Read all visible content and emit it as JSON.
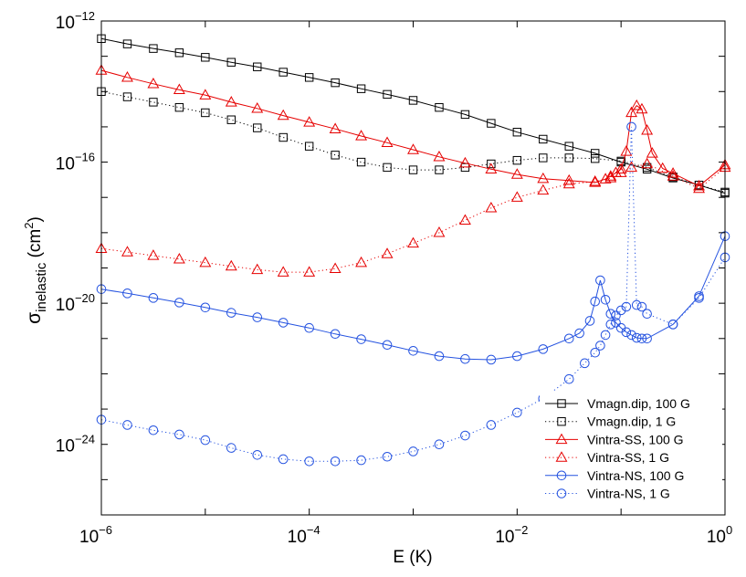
{
  "chart_data": {
    "type": "line",
    "x_scale": "log",
    "y_scale": "log",
    "xlabel": "E (K)",
    "ylabel_main": "σ",
    "ylabel_sub": "inelastic",
    "ylabel_unit_open": " (cm",
    "ylabel_unit_sup": "2",
    "ylabel_unit_close": ")",
    "xlim_exp": [
      -6,
      0
    ],
    "ylim_exp": [
      -26,
      -12
    ],
    "x_ticks": [
      {
        "base": "10",
        "exp": "−6",
        "value": -6
      },
      {
        "base": "10",
        "exp": "−4",
        "value": -4
      },
      {
        "base": "10",
        "exp": "−2",
        "value": -2
      },
      {
        "base": "10",
        "exp": "0",
        "value": 0
      }
    ],
    "y_ticks": [
      {
        "base": "10",
        "exp": "−12",
        "value": -12
      },
      {
        "base": "10",
        "exp": "−16",
        "value": -16
      },
      {
        "base": "10",
        "exp": "−20",
        "value": -20
      },
      {
        "base": "10",
        "exp": "−24",
        "value": -24
      }
    ],
    "legend_position": "bottom-right",
    "series": [
      {
        "name": "Vmagn.dip, 100 G",
        "color": "#000000",
        "marker": "square",
        "line": "solid",
        "log_x": [
          -6.0,
          -5.75,
          -5.5,
          -5.25,
          -5.0,
          -4.75,
          -4.5,
          -4.25,
          -4.0,
          -3.75,
          -3.5,
          -3.25,
          -3.0,
          -2.75,
          -2.5,
          -2.25,
          -2.0,
          -1.75,
          -1.5,
          -1.25,
          -1.0,
          -0.75,
          -0.5,
          -0.25,
          0.0
        ],
        "log_y": [
          -12.5,
          -12.65,
          -12.78,
          -12.9,
          -13.03,
          -13.17,
          -13.3,
          -13.45,
          -13.6,
          -13.75,
          -13.92,
          -14.08,
          -14.25,
          -14.45,
          -14.65,
          -14.9,
          -15.15,
          -15.35,
          -15.55,
          -15.75,
          -16.0,
          -16.2,
          -16.45,
          -16.65,
          -16.88
        ]
      },
      {
        "name": "Vmagn.dip, 1 G",
        "color": "#000000",
        "marker": "square",
        "line": "dotted",
        "log_x": [
          -6.0,
          -5.75,
          -5.5,
          -5.25,
          -5.0,
          -4.75,
          -4.5,
          -4.25,
          -4.0,
          -3.75,
          -3.5,
          -3.25,
          -3.0,
          -2.75,
          -2.5,
          -2.25,
          -2.0,
          -1.75,
          -1.5,
          -1.25,
          -1.0,
          -0.75,
          -0.5,
          -0.25,
          0.0
        ],
        "log_y": [
          -14.0,
          -14.15,
          -14.3,
          -14.45,
          -14.6,
          -14.8,
          -15.03,
          -15.3,
          -15.55,
          -15.8,
          -16.0,
          -16.15,
          -16.22,
          -16.22,
          -16.15,
          -16.05,
          -15.95,
          -15.88,
          -15.88,
          -15.9,
          -15.97,
          -16.15,
          -16.42,
          -16.65,
          -16.85
        ]
      },
      {
        "name": "Vintra-SS, 100 G",
        "color": "#e60000",
        "marker": "triangle",
        "line": "solid",
        "log_x": [
          -6.0,
          -5.75,
          -5.5,
          -5.25,
          -5.0,
          -4.75,
          -4.5,
          -4.25,
          -4.0,
          -3.75,
          -3.5,
          -3.25,
          -3.0,
          -2.75,
          -2.5,
          -2.25,
          -2.0,
          -1.75,
          -1.5,
          -1.25,
          -1.15,
          -1.1,
          -1.05,
          -1.0,
          -0.95,
          -0.9,
          -0.85,
          -0.8,
          -0.75,
          -0.7,
          -0.6,
          -0.5,
          -0.25,
          0.0
        ],
        "log_y": [
          -13.4,
          -13.6,
          -13.78,
          -13.95,
          -14.1,
          -14.3,
          -14.48,
          -14.68,
          -14.87,
          -15.06,
          -15.26,
          -15.45,
          -15.65,
          -15.85,
          -16.03,
          -16.2,
          -16.35,
          -16.47,
          -16.52,
          -16.58,
          -16.48,
          -16.4,
          -16.3,
          -16.2,
          -15.7,
          -14.6,
          -14.4,
          -14.5,
          -15.1,
          -15.75,
          -16.18,
          -16.32,
          -16.68,
          -16.08
        ]
      },
      {
        "name": "Vintra-SS, 1 G",
        "color": "#e60000",
        "marker": "triangle",
        "line": "dotted",
        "log_x": [
          -6.0,
          -5.75,
          -5.5,
          -5.25,
          -5.0,
          -4.75,
          -4.5,
          -4.25,
          -4.0,
          -3.75,
          -3.5,
          -3.25,
          -3.0,
          -2.75,
          -2.5,
          -2.25,
          -2.0,
          -1.75,
          -1.5,
          -1.25,
          -1.1,
          -1.0,
          -0.9,
          -0.75,
          -0.5,
          -0.25,
          0.0
        ],
        "log_y": [
          -18.45,
          -18.55,
          -18.65,
          -18.75,
          -18.85,
          -18.95,
          -19.05,
          -19.12,
          -19.12,
          -19.02,
          -18.85,
          -18.6,
          -18.3,
          -18.0,
          -17.65,
          -17.3,
          -17.0,
          -16.8,
          -16.62,
          -16.55,
          -16.45,
          -16.3,
          -16.15,
          -16.05,
          -16.4,
          -16.75,
          -16.15
        ]
      },
      {
        "name": "Vintra-NS, 100 G",
        "color": "#2452e0",
        "marker": "circle",
        "line": "solid",
        "log_x": [
          -6.0,
          -5.75,
          -5.5,
          -5.25,
          -5.0,
          -4.75,
          -4.5,
          -4.25,
          -4.0,
          -3.75,
          -3.5,
          -3.25,
          -3.0,
          -2.75,
          -2.5,
          -2.25,
          -2.0,
          -1.75,
          -1.5,
          -1.4,
          -1.3,
          -1.25,
          -1.2,
          -1.15,
          -1.1,
          -1.05,
          -1.0,
          -0.95,
          -0.9,
          -0.85,
          -0.8,
          -0.75,
          -0.5,
          -0.25,
          0.0
        ],
        "log_y": [
          -19.6,
          -19.72,
          -19.85,
          -19.98,
          -20.12,
          -20.27,
          -20.4,
          -20.55,
          -20.7,
          -20.87,
          -21.02,
          -21.18,
          -21.35,
          -21.5,
          -21.58,
          -21.6,
          -21.5,
          -21.3,
          -21.0,
          -20.85,
          -20.5,
          -19.95,
          -19.35,
          -19.9,
          -20.3,
          -20.55,
          -20.7,
          -20.82,
          -20.9,
          -20.98,
          -21.0,
          -21.0,
          -20.6,
          -19.8,
          -18.1
        ]
      },
      {
        "name": "Vintra-NS, 1 G",
        "color": "#2452e0",
        "marker": "circle",
        "line": "dotted",
        "log_x": [
          -6.0,
          -5.75,
          -5.5,
          -5.25,
          -5.0,
          -4.75,
          -4.5,
          -4.25,
          -4.0,
          -3.75,
          -3.5,
          -3.25,
          -3.0,
          -2.75,
          -2.5,
          -2.25,
          -2.0,
          -1.75,
          -1.5,
          -1.35,
          -1.25,
          -1.2,
          -1.15,
          -1.1,
          -1.05,
          -1.0,
          -0.95,
          -0.9,
          -0.85,
          -0.8,
          -0.75,
          -0.5,
          -0.25,
          0.0
        ],
        "log_y": [
          -23.3,
          -23.45,
          -23.6,
          -23.72,
          -23.88,
          -24.1,
          -24.3,
          -24.42,
          -24.48,
          -24.48,
          -24.45,
          -24.35,
          -24.2,
          -24.0,
          -23.75,
          -23.45,
          -23.1,
          -22.7,
          -22.15,
          -21.7,
          -21.4,
          -21.2,
          -20.9,
          -20.6,
          -20.35,
          -20.2,
          -20.1,
          -15.0,
          -20.05,
          -20.1,
          -20.3,
          -20.6,
          -19.85,
          -18.7
        ]
      }
    ]
  }
}
